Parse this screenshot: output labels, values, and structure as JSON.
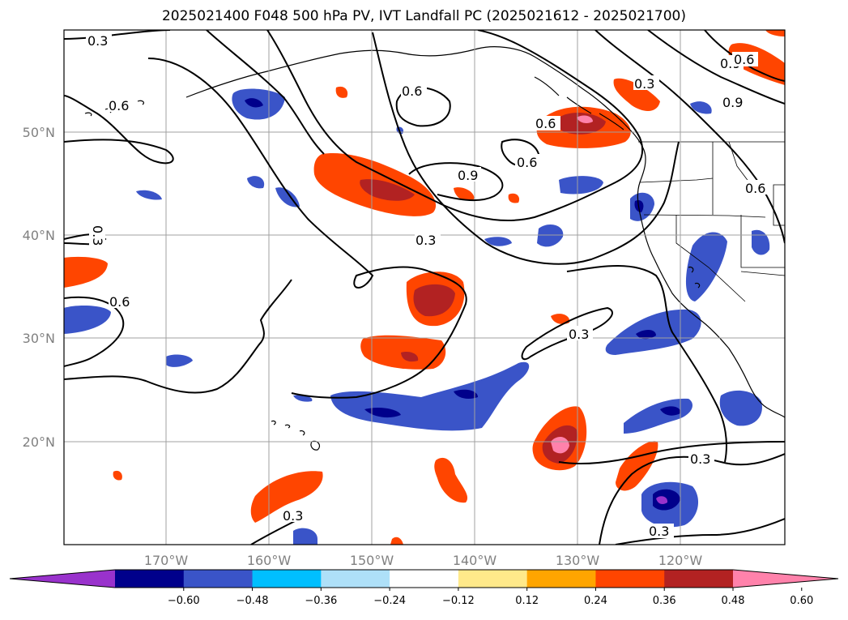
{
  "title": "2025021400 F048 500 hPa PV, IVT Landfall PC (2025021612 - 2025021700)",
  "map": {
    "lat_labels": [
      {
        "lat": 50,
        "text": "50°N"
      },
      {
        "lat": 40,
        "text": "40°N"
      },
      {
        "lat": 30,
        "text": "30°N"
      },
      {
        "lat": 20,
        "text": "20°N"
      }
    ],
    "lon_labels": [
      {
        "lon": -170,
        "text": "170°W"
      },
      {
        "lon": -160,
        "text": "160°W"
      },
      {
        "lon": -150,
        "text": "150°W"
      },
      {
        "lon": -140,
        "text": "140°W"
      },
      {
        "lon": -130,
        "text": "130°W"
      },
      {
        "lon": -120,
        "text": "120°W"
      }
    ],
    "contour_labels": [
      "0.3",
      "0.6",
      "0.9"
    ]
  },
  "colorbar": {
    "ticks": [
      "−0.60",
      "−0.48",
      "−0.36",
      "−0.24",
      "−0.12",
      "0.12",
      "0.24",
      "0.36",
      "0.48",
      "0.60"
    ],
    "colors": [
      "#9932cc",
      "#00008b",
      "#3a54c8",
      "#00bfff",
      "#aee0f8",
      "#ffffff",
      "#ffe98a",
      "#ffa500",
      "#ff4500",
      "#b22222",
      "#ff82ab"
    ]
  }
}
